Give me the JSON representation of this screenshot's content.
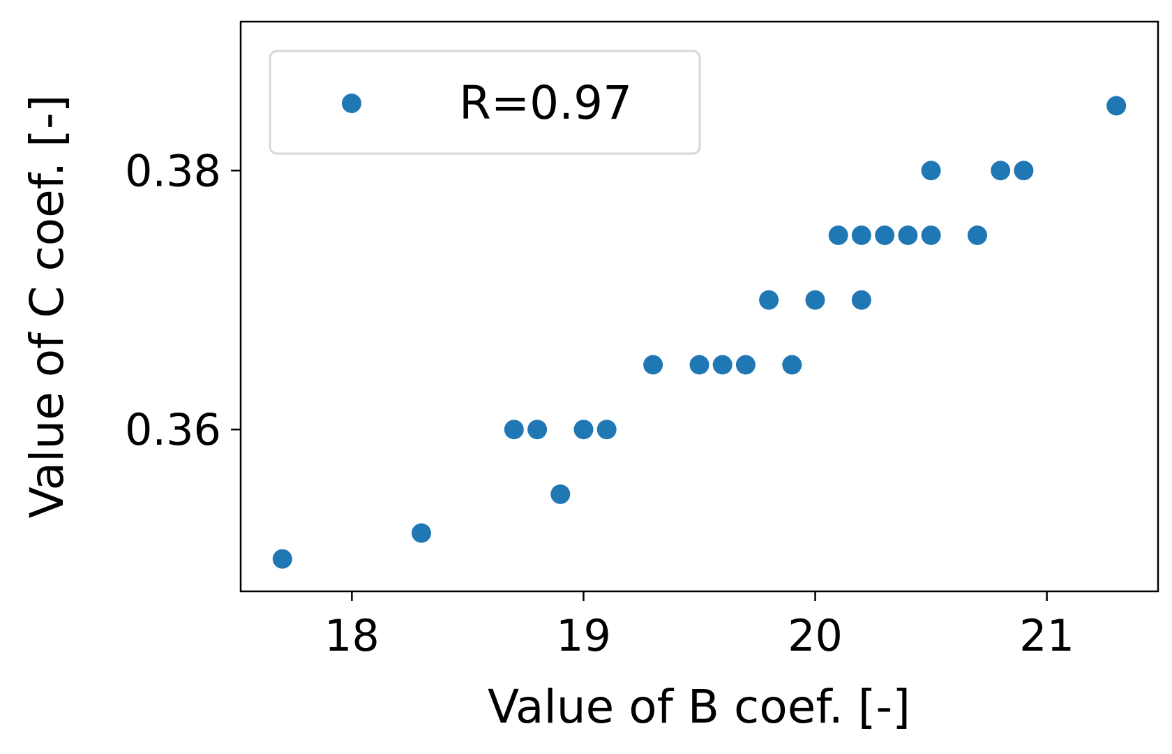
{
  "chart_data": {
    "type": "scatter",
    "xlabel": "Value of B coef. [-]",
    "ylabel": "Value of C coef. [-]",
    "xlim": [
      17.52,
      21.48
    ],
    "ylim": [
      0.3475,
      0.3915
    ],
    "xticks": [
      18,
      19,
      20,
      21
    ],
    "yticks": [
      0.36,
      0.38
    ],
    "ytick_labels": [
      "0.36",
      "0.38"
    ],
    "xtick_labels": [
      "18",
      "19",
      "20",
      "21"
    ],
    "grid": false,
    "legend_position": "top-left",
    "color": "#1f77b4",
    "series": [
      {
        "name": "R=0.97",
        "x": [
          17.7,
          18.3,
          18.7,
          18.8,
          18.9,
          19.0,
          19.1,
          19.3,
          19.5,
          19.6,
          19.7,
          19.8,
          19.9,
          20.0,
          20.1,
          20.2,
          20.2,
          20.3,
          20.4,
          20.5,
          20.5,
          20.7,
          20.8,
          20.9,
          21.3
        ],
        "y": [
          0.35,
          0.352,
          0.36,
          0.36,
          0.355,
          0.36,
          0.36,
          0.365,
          0.365,
          0.365,
          0.365,
          0.37,
          0.365,
          0.37,
          0.375,
          0.375,
          0.37,
          0.375,
          0.375,
          0.375,
          0.38,
          0.375,
          0.38,
          0.38,
          0.385
        ]
      }
    ]
  }
}
